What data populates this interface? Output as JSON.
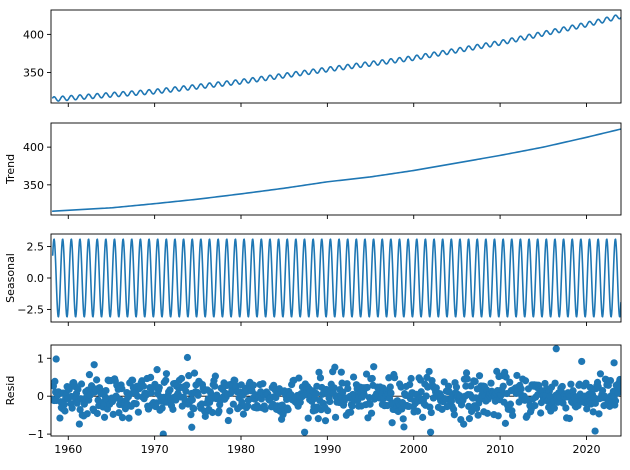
{
  "chart_data": {
    "type": "line",
    "description_source": "seasonal decomposition panels",
    "color": "#1f77b4",
    "x_range": [
      1958,
      2024
    ],
    "x_ticks": [
      1960,
      1970,
      1980,
      1990,
      2000,
      2010,
      2020
    ],
    "panels": [
      {
        "name": "observed",
        "type": "line",
        "ylabel": "",
        "ylim": [
          310,
          432
        ],
        "y_ticks": [
          350,
          400
        ],
        "trend_points": [
          [
            1958.2,
            315
          ],
          [
            1970,
            325
          ],
          [
            1980,
            338
          ],
          [
            1990,
            354
          ],
          [
            2000,
            369
          ],
          [
            2010,
            389
          ],
          [
            2020,
            413
          ],
          [
            2024,
            424
          ]
        ],
        "seasonal_amplitude": 3
      },
      {
        "name": "trend",
        "type": "line",
        "ylabel": "Trend",
        "ylim": [
          310,
          432
        ],
        "y_ticks": [
          350,
          400
        ],
        "trend_points": [
          [
            1958.2,
            315
          ],
          [
            1965,
            319.5
          ],
          [
            1970,
            325
          ],
          [
            1975,
            331
          ],
          [
            1980,
            338
          ],
          [
            1985,
            345.5
          ],
          [
            1990,
            354
          ],
          [
            1995,
            360.5
          ],
          [
            2000,
            369
          ],
          [
            2005,
            379
          ],
          [
            2010,
            389
          ],
          [
            2015,
            400
          ],
          [
            2020,
            413
          ],
          [
            2024,
            424
          ]
        ]
      },
      {
        "name": "seasonal",
        "type": "line",
        "ylabel": "Seasonal",
        "ylim": [
          -3.5,
          3.5
        ],
        "y_ticks": [
          -2.5,
          0.0,
          2.5
        ],
        "amplitude": 3.1,
        "period_years": 1
      },
      {
        "name": "resid",
        "type": "scatter",
        "ylabel": "Resid",
        "ylim": [
          -1.05,
          1.35
        ],
        "y_ticks": [
          -1,
          0,
          1
        ],
        "x_start": 1958.2,
        "x_step": 0.0833333,
        "count": 790,
        "typical_spread": 0.28,
        "outliers": [
          {
            "x": 1958.6,
            "y": 0.98
          },
          {
            "x": 1963.0,
            "y": 0.83
          },
          {
            "x": 1971.0,
            "y": -1.0
          },
          {
            "x": 1973.8,
            "y": 1.02
          },
          {
            "x": 1974.3,
            "y": -0.82
          },
          {
            "x": 2016.5,
            "y": 1.25
          },
          {
            "x": 2023.2,
            "y": 0.88
          },
          {
            "x": 2021.0,
            "y": -0.92
          },
          {
            "x": 1997.5,
            "y": -0.7
          }
        ]
      }
    ]
  }
}
